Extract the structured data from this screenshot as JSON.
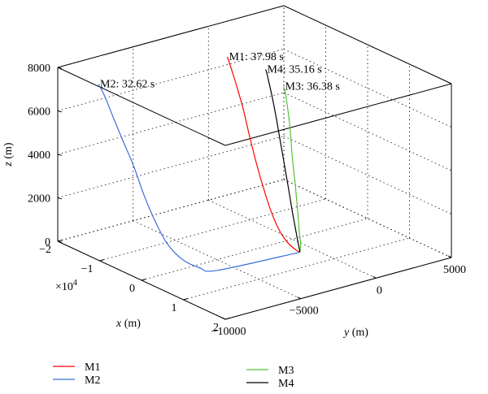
{
  "chart_data": {
    "type": "line",
    "projection": "3d",
    "axes": {
      "x": {
        "label": "x",
        "unit": "(m)",
        "range": [
          -20000,
          20000
        ],
        "ticks": [
          -2,
          -1,
          0,
          1,
          2
        ],
        "multiplier": "×10",
        "multiplier_exp": "4"
      },
      "y": {
        "label": "y",
        "unit": "(m)",
        "range": [
          -10000,
          5000
        ],
        "ticks": [
          -10000,
          -5000,
          0,
          5000
        ]
      },
      "z": {
        "label": "z",
        "unit": "(m)",
        "range": [
          0,
          8000
        ],
        "ticks": [
          0,
          2000,
          4000,
          6000,
          8000
        ]
      }
    },
    "grid": true,
    "legend_position": "bottom-left",
    "series": [
      {
        "name": "M1",
        "color": "#ff0000",
        "annotation": "M1: 37.98 s",
        "points": [
          [
            -15500,
            0,
            7000
          ],
          [
            -14000,
            -150,
            6600
          ],
          [
            -12000,
            -300,
            5900
          ],
          [
            -10000,
            -450,
            5100
          ],
          [
            -8000,
            -600,
            4100
          ],
          [
            -6000,
            -700,
            3050
          ],
          [
            -4000,
            -780,
            2100
          ],
          [
            -2000,
            -820,
            1200
          ],
          [
            0,
            -850,
            550
          ],
          [
            2000,
            -860,
            180
          ],
          [
            4000,
            -860,
            20
          ],
          [
            4900,
            -850,
            0
          ]
        ]
      },
      {
        "name": "M2",
        "color": "#3b6fd8",
        "annotation": "M2: 32.62 s",
        "points": [
          [
            -11000,
            -9800,
            8000
          ],
          [
            -10300,
            -9600,
            7500
          ],
          [
            -9200,
            -9300,
            6500
          ],
          [
            -8000,
            -9000,
            5500
          ],
          [
            -6500,
            -8700,
            4400
          ],
          [
            -4800,
            -8500,
            3200
          ],
          [
            -3000,
            -8250,
            2100
          ],
          [
            -1000,
            -8000,
            1200
          ],
          [
            800,
            -7500,
            550
          ],
          [
            2300,
            -6800,
            180
          ],
          [
            3700,
            -6000,
            30
          ],
          [
            4900,
            -850,
            0
          ]
        ]
      },
      {
        "name": "M3",
        "color": "#55c235",
        "annotation": "M3: 36.38 s",
        "points": [
          [
            4900,
            -850,
            0
          ],
          [
            3600,
            -450,
            200
          ],
          [
            2000,
            -100,
            600
          ],
          [
            200,
            300,
            1300
          ],
          [
            -1600,
            650,
            2200
          ],
          [
            -3600,
            1000,
            3300
          ],
          [
            -5400,
            1350,
            4400
          ],
          [
            -7200,
            1650,
            5300
          ],
          [
            -8600,
            1900,
            5700
          ],
          [
            -9300,
            2000,
            5800
          ]
        ]
      },
      {
        "name": "M4",
        "color": "#000000",
        "annotation": "M4: 35.16 s",
        "points": [
          [
            4900,
            -850,
            0
          ],
          [
            3500,
            -700,
            700
          ],
          [
            2000,
            -550,
            1550
          ],
          [
            500,
            -400,
            2500
          ],
          [
            -1000,
            -250,
            3400
          ],
          [
            -2500,
            -100,
            4300
          ],
          [
            -4000,
            50,
            5200
          ],
          [
            -5500,
            200,
            6000
          ],
          [
            -6700,
            300,
            6600
          ],
          [
            -7600,
            400,
            6950
          ],
          [
            -8000,
            450,
            7000
          ]
        ]
      }
    ]
  }
}
